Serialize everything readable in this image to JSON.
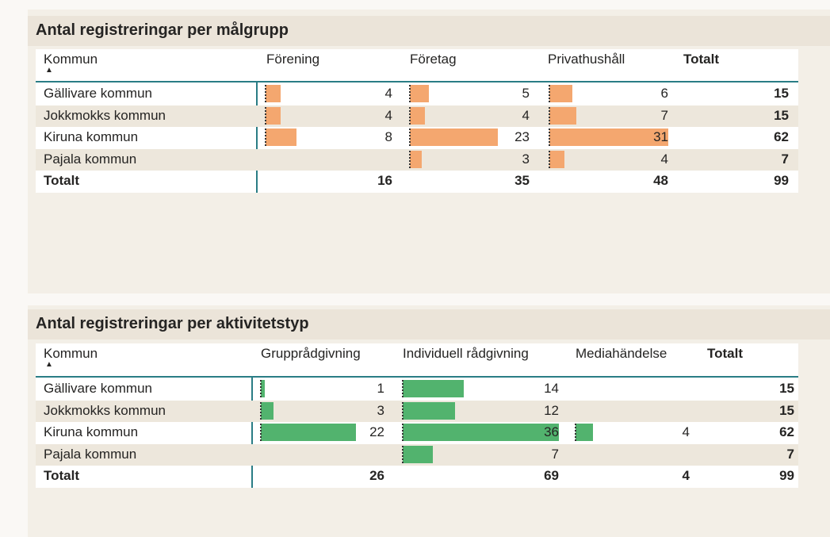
{
  "tables": [
    {
      "title": "Antal registreringar per målgrupp",
      "columns": [
        "Kommun",
        "Förening",
        "Företag",
        "Privathushåll",
        "Totalt"
      ],
      "bar_color": "#f4a76f",
      "rows": [
        {
          "kommun": "Gällivare kommun",
          "cells": [
            4,
            5,
            6
          ],
          "total": 15
        },
        {
          "kommun": "Jokkmokks kommun",
          "cells": [
            4,
            4,
            7
          ],
          "total": 15
        },
        {
          "kommun": "Kiruna kommun",
          "cells": [
            8,
            23,
            31
          ],
          "total": 62
        },
        {
          "kommun": "Pajala kommun",
          "cells": [
            null,
            3,
            4
          ],
          "total": 7
        }
      ],
      "total_row": {
        "label": "Totalt",
        "cells": [
          16,
          35,
          48
        ],
        "total": 99
      }
    },
    {
      "title": "Antal registreringar per aktivitetstyp",
      "columns": [
        "Kommun",
        "Grupprådgivning",
        "Individuell rådgivning",
        "Mediahändelse",
        "Totalt"
      ],
      "bar_color": "#52b36e",
      "rows": [
        {
          "kommun": "Gällivare kommun",
          "cells": [
            1,
            14,
            null
          ],
          "total": 15
        },
        {
          "kommun": "Jokkmokks kommun",
          "cells": [
            3,
            12,
            null
          ],
          "total": 15
        },
        {
          "kommun": "Kiruna kommun",
          "cells": [
            22,
            36,
            4
          ],
          "total": 62
        },
        {
          "kommun": "Pajala kommun",
          "cells": [
            null,
            7,
            null
          ],
          "total": 7
        }
      ],
      "total_row": {
        "label": "Totalt",
        "cells": [
          26,
          69,
          4
        ],
        "total": 99
      }
    }
  ]
}
